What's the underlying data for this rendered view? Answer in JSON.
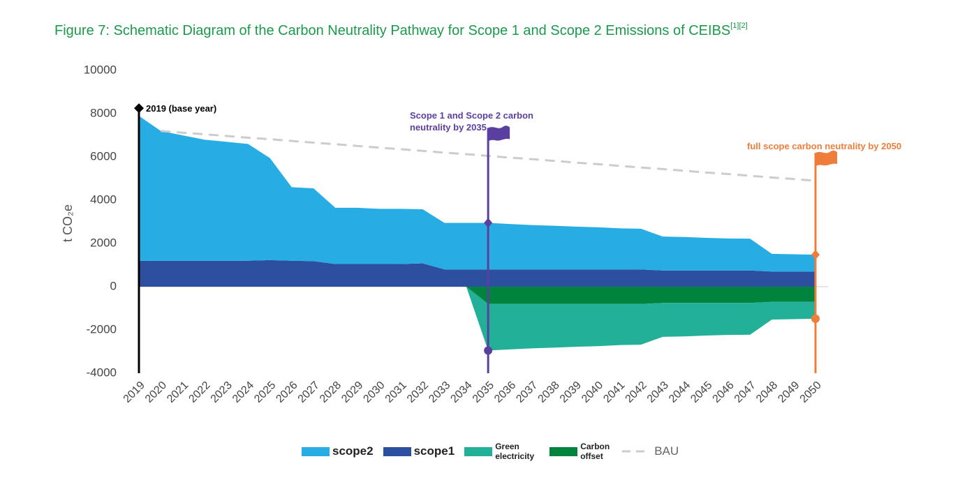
{
  "chart_data": {
    "type": "area",
    "title": "Figure 7: Schematic Diagram of the Carbon Neutrality Pathway for Scope 1 and Scope 2 Emissions of CEIBS",
    "title_superscript": "[1][2]",
    "y_label": "t CO₂e",
    "x": [
      2019,
      2020,
      2021,
      2022,
      2023,
      2024,
      2025,
      2026,
      2027,
      2028,
      2029,
      2030,
      2031,
      2032,
      2033,
      2034,
      2035,
      2036,
      2037,
      2038,
      2039,
      2040,
      2041,
      2042,
      2043,
      2044,
      2045,
      2046,
      2047,
      2048,
      2049,
      2050
    ],
    "ylim": [
      -4000,
      10000
    ],
    "yticks": [
      -4000,
      -2000,
      0,
      2000,
      4000,
      6000,
      8000,
      10000
    ],
    "series": [
      {
        "name": "scope2",
        "color": "#27ade3",
        "values": [
          6700,
          6000,
          5800,
          5600,
          5500,
          5400,
          4720,
          3400,
          3370,
          2600,
          2600,
          2550,
          2550,
          2500,
          2150,
          2150,
          2150,
          2100,
          2050,
          2020,
          1980,
          1950,
          1900,
          1880,
          1570,
          1550,
          1510,
          1480,
          1470,
          820,
          800,
          780
        ]
      },
      {
        "name": "scope1",
        "color": "#2c4f9f",
        "values": [
          1200,
          1200,
          1200,
          1200,
          1200,
          1200,
          1230,
          1200,
          1180,
          1050,
          1050,
          1050,
          1050,
          1080,
          800,
          800,
          800,
          800,
          800,
          800,
          800,
          800,
          800,
          800,
          750,
          750,
          750,
          750,
          750,
          700,
          700,
          700
        ]
      },
      {
        "name": "Green electricity",
        "color": "#22b198",
        "values": [
          null,
          null,
          null,
          null,
          null,
          null,
          null,
          null,
          null,
          null,
          null,
          null,
          null,
          null,
          null,
          0,
          -2150,
          -2100,
          -2050,
          -2020,
          -1980,
          -1950,
          -1900,
          -1880,
          -1570,
          -1550,
          -1510,
          -1480,
          -1470,
          -820,
          -800,
          -780
        ]
      },
      {
        "name": "Carbon offset",
        "color": "#00843d",
        "values": [
          null,
          null,
          null,
          null,
          null,
          null,
          null,
          null,
          null,
          null,
          null,
          null,
          null,
          null,
          null,
          0,
          -800,
          -800,
          -800,
          -800,
          -800,
          -800,
          -800,
          -800,
          -750,
          -750,
          -750,
          -750,
          -750,
          -700,
          -700,
          -700
        ]
      },
      {
        "name": "BAU",
        "type": "line",
        "dashed": true,
        "color": "#cccccc",
        "values": [
          null,
          7200,
          7120,
          7050,
          6970,
          6890,
          6820,
          6740,
          6660,
          6590,
          6510,
          6430,
          6360,
          6280,
          6200,
          6130,
          6050,
          5970,
          5900,
          5820,
          5740,
          5670,
          5590,
          5510,
          5440,
          5360,
          5280,
          5210,
          5130,
          5050,
          4980,
          4900
        ]
      }
    ],
    "annotations": [
      {
        "x": 2019,
        "text": "2019  (base year)",
        "color": "#000000",
        "flag": false
      },
      {
        "x": 2035,
        "text": "Scope 1 and Scope 2 carbon neutrality by 2035",
        "color": "#5b3fa0",
        "flag": true
      },
      {
        "x": 2050,
        "text": "full scope carbon neutrality by 2050",
        "color": "#ef7d3a",
        "flag": true
      }
    ]
  }
}
